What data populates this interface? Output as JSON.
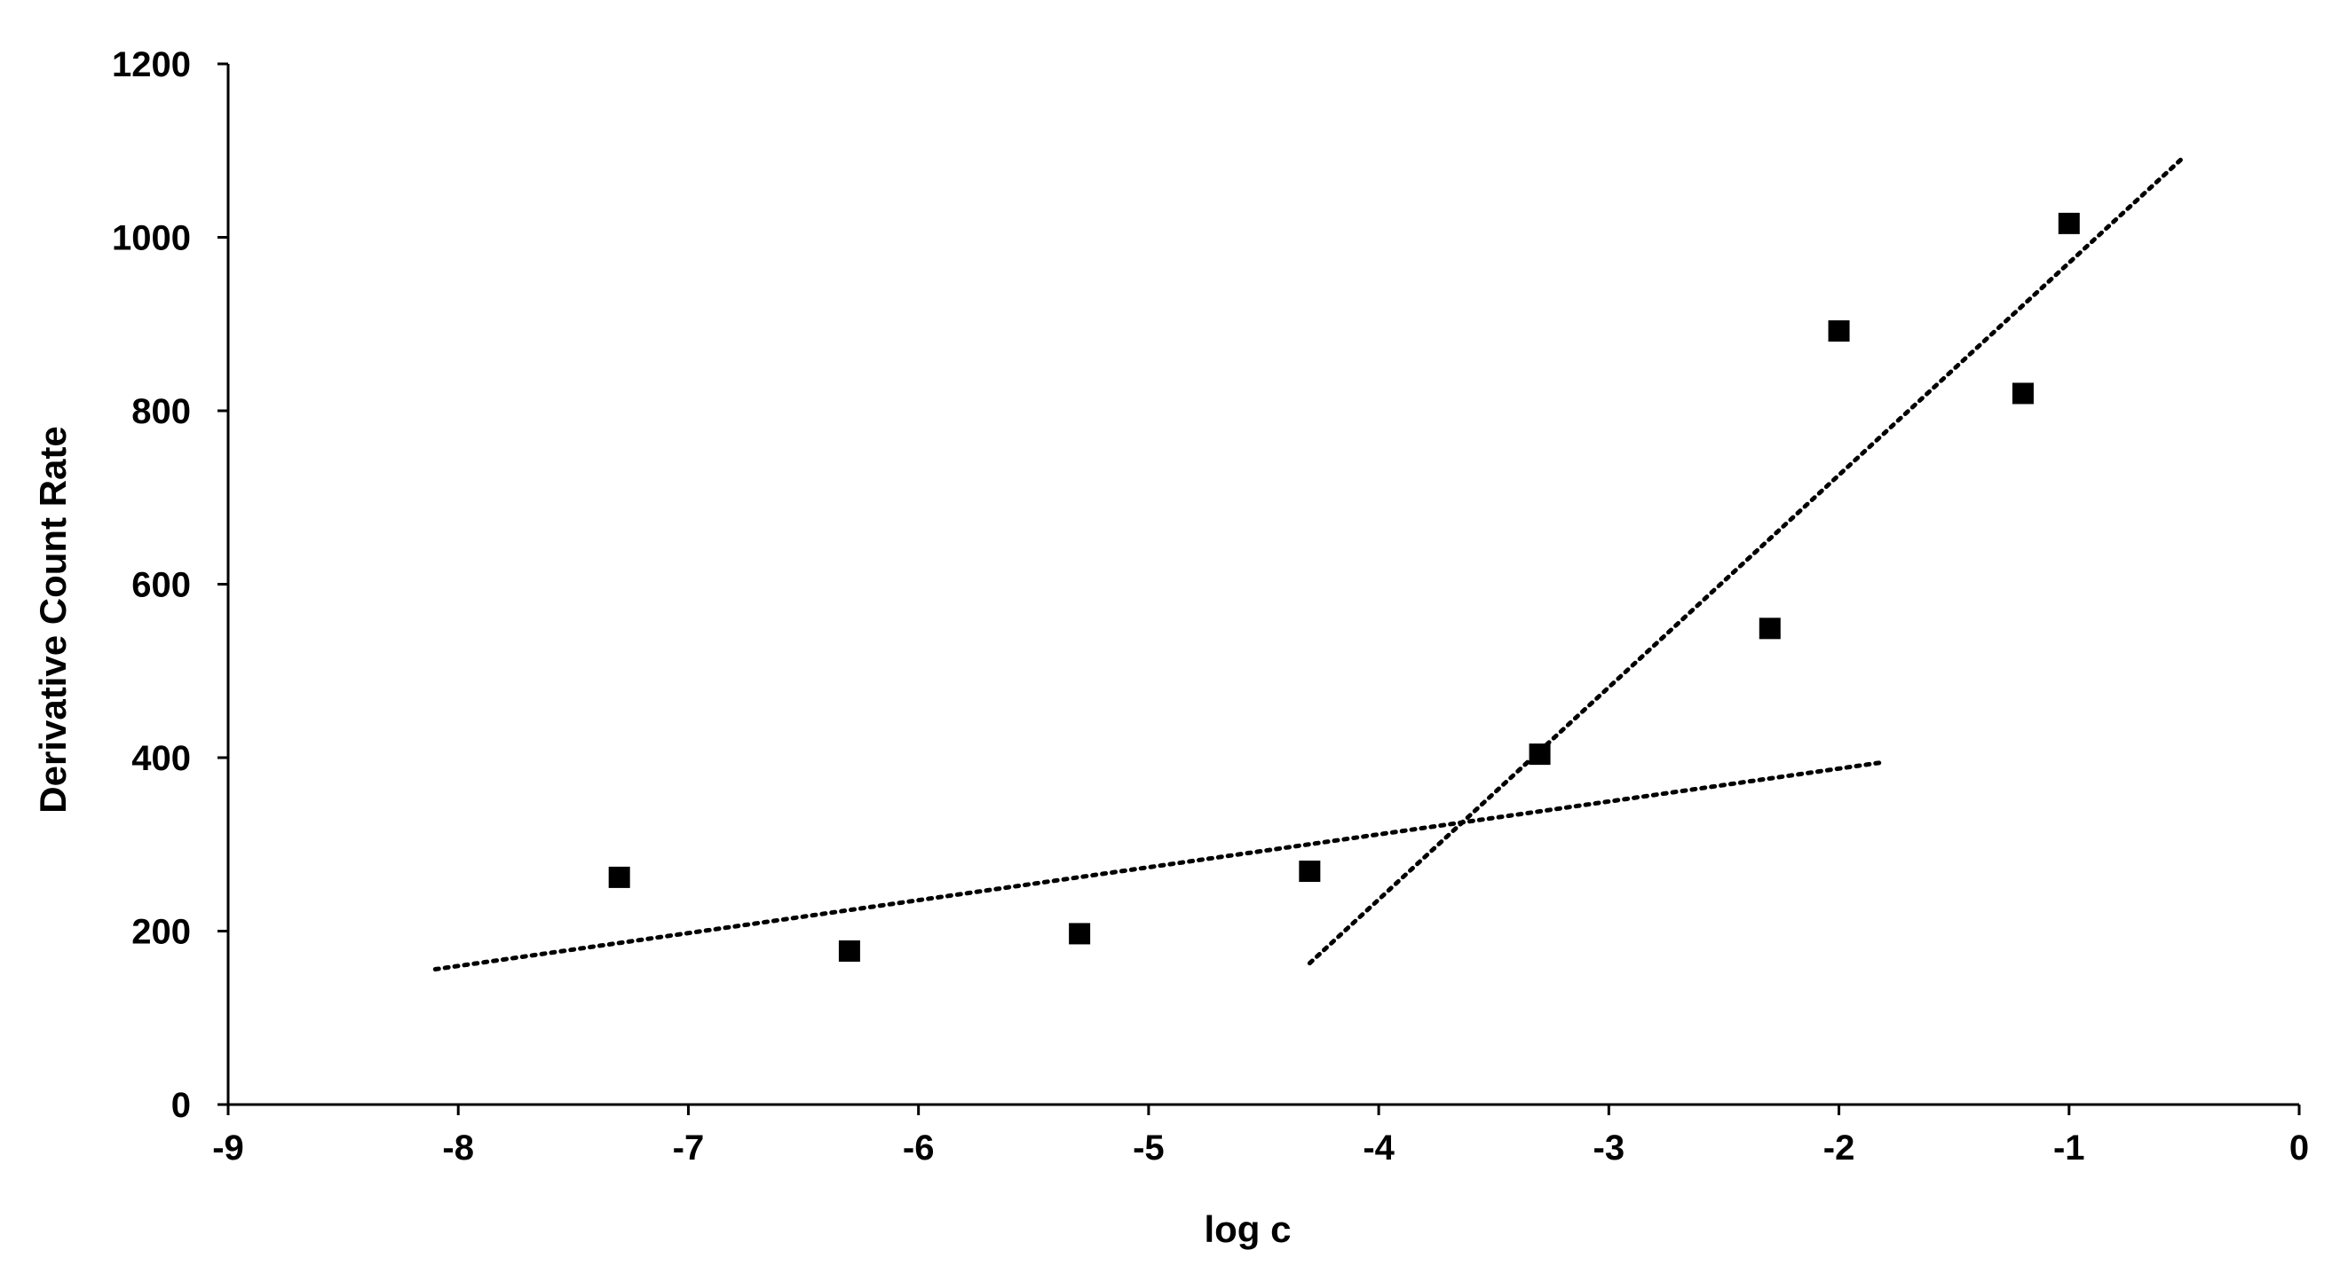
{
  "chart_data": {
    "type": "scatter",
    "title": "",
    "xlabel": "log c",
    "ylabel": "Derivative Count Rate",
    "xlim": [
      -9,
      0
    ],
    "ylim": [
      0,
      1200
    ],
    "xticks": [
      -9,
      -8,
      -7,
      -6,
      -5,
      -4,
      -3,
      -2,
      -1,
      0
    ],
    "yticks": [
      0,
      200,
      400,
      600,
      800,
      1000,
      1200
    ],
    "xtick_labels": [
      "-9",
      "-8",
      "-7",
      "-6",
      "-5",
      "-4",
      "-3",
      "-2",
      "-1",
      "0"
    ],
    "ytick_labels": [
      "0",
      "200",
      "400",
      "600",
      "800",
      "1000",
      "1200"
    ],
    "grid": false,
    "legend": "none",
    "marker_color": "#000000",
    "series": [
      {
        "marker": "square",
        "points": [
          {
            "x": -7.3,
            "y": 262
          },
          {
            "x": -6.3,
            "y": 177
          },
          {
            "x": -5.3,
            "y": 197
          },
          {
            "x": -4.3,
            "y": 269
          },
          {
            "x": -3.3,
            "y": 404
          },
          {
            "x": -2.3,
            "y": 549
          },
          {
            "x": -2.0,
            "y": 892
          },
          {
            "x": -1.2,
            "y": 820
          },
          {
            "x": -1.0,
            "y": 1016
          }
        ]
      }
    ],
    "trendlines": [
      {
        "style": "dotted",
        "x": [
          -8.1,
          -1.8
        ],
        "y": [
          156,
          395
        ]
      },
      {
        "style": "dotted",
        "x": [
          -4.3,
          -0.5
        ],
        "y": [
          163,
          1093
        ]
      }
    ]
  }
}
